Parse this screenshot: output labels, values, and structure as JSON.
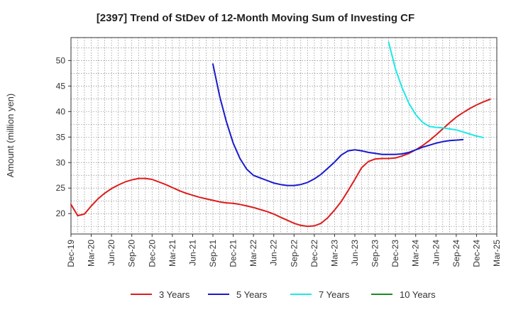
{
  "chart_data": {
    "type": "line",
    "title": "[2397]  Trend of StDev of 12-Month Moving Sum of Investing CF",
    "ylabel": "Amount (million yen)",
    "xlabel": "",
    "ylim": [
      16,
      54.5
    ],
    "yticks": [
      20,
      25,
      30,
      35,
      40,
      45,
      50
    ],
    "x_categories": [
      "Dec-19",
      "Mar-20",
      "Jun-20",
      "Sep-20",
      "Dec-20",
      "Mar-21",
      "Jun-21",
      "Sep-21",
      "Dec-21",
      "Mar-22",
      "Jun-22",
      "Sep-22",
      "Dec-22",
      "Mar-23",
      "Jun-23",
      "Sep-23",
      "Dec-23",
      "Mar-24",
      "Jun-24",
      "Sep-24",
      "Dec-24",
      "Mar-25"
    ],
    "grid": true,
    "legend_position": "bottom",
    "series": [
      {
        "name": "3 Years",
        "color": "#dd1c1c",
        "start_index": 0,
        "values": [
          21.8,
          19.6,
          19.9,
          21.5,
          22.9,
          24.0,
          24.9,
          25.6,
          26.2,
          26.6,
          26.9,
          26.9,
          26.7,
          26.2,
          25.7,
          25.1,
          24.5,
          24.0,
          23.6,
          23.2,
          22.9,
          22.6,
          22.3,
          22.1,
          22.0,
          21.8,
          21.5,
          21.2,
          20.8,
          20.4,
          19.9,
          19.3,
          18.7,
          18.1,
          17.7,
          17.5,
          17.6,
          18.1,
          19.2,
          20.7,
          22.4,
          24.5,
          26.7,
          29.0,
          30.2,
          30.7,
          30.8,
          30.8,
          30.9,
          31.3,
          31.8,
          32.5,
          33.3,
          34.3,
          35.4,
          36.6,
          37.8,
          38.9,
          39.8,
          40.6,
          41.3,
          41.9,
          42.4
        ]
      },
      {
        "name": "5 Years",
        "color": "#1a1acd",
        "start_index": 21,
        "values": [
          49.3,
          43.0,
          38.0,
          33.8,
          30.8,
          28.7,
          27.5,
          27.0,
          26.5,
          26.0,
          25.7,
          25.5,
          25.5,
          25.7,
          26.1,
          26.8,
          27.7,
          28.9,
          30.1,
          31.5,
          32.3,
          32.5,
          32.3,
          32.0,
          31.8,
          31.6,
          31.6,
          31.6,
          31.7,
          32.0,
          32.5,
          33.0,
          33.4,
          33.8,
          34.1,
          34.3,
          34.4,
          34.5
        ]
      },
      {
        "name": "7 Years",
        "color": "#1ee8e8",
        "start_index": 47,
        "values": [
          53.6,
          48.4,
          44.6,
          41.6,
          39.4,
          37.9,
          37.1,
          36.9,
          36.8,
          36.6,
          36.4,
          36.0,
          35.6,
          35.2,
          34.9
        ]
      },
      {
        "name": "10 Years",
        "color": "#1f8a1f",
        "start_index": 0,
        "values": []
      }
    ]
  }
}
